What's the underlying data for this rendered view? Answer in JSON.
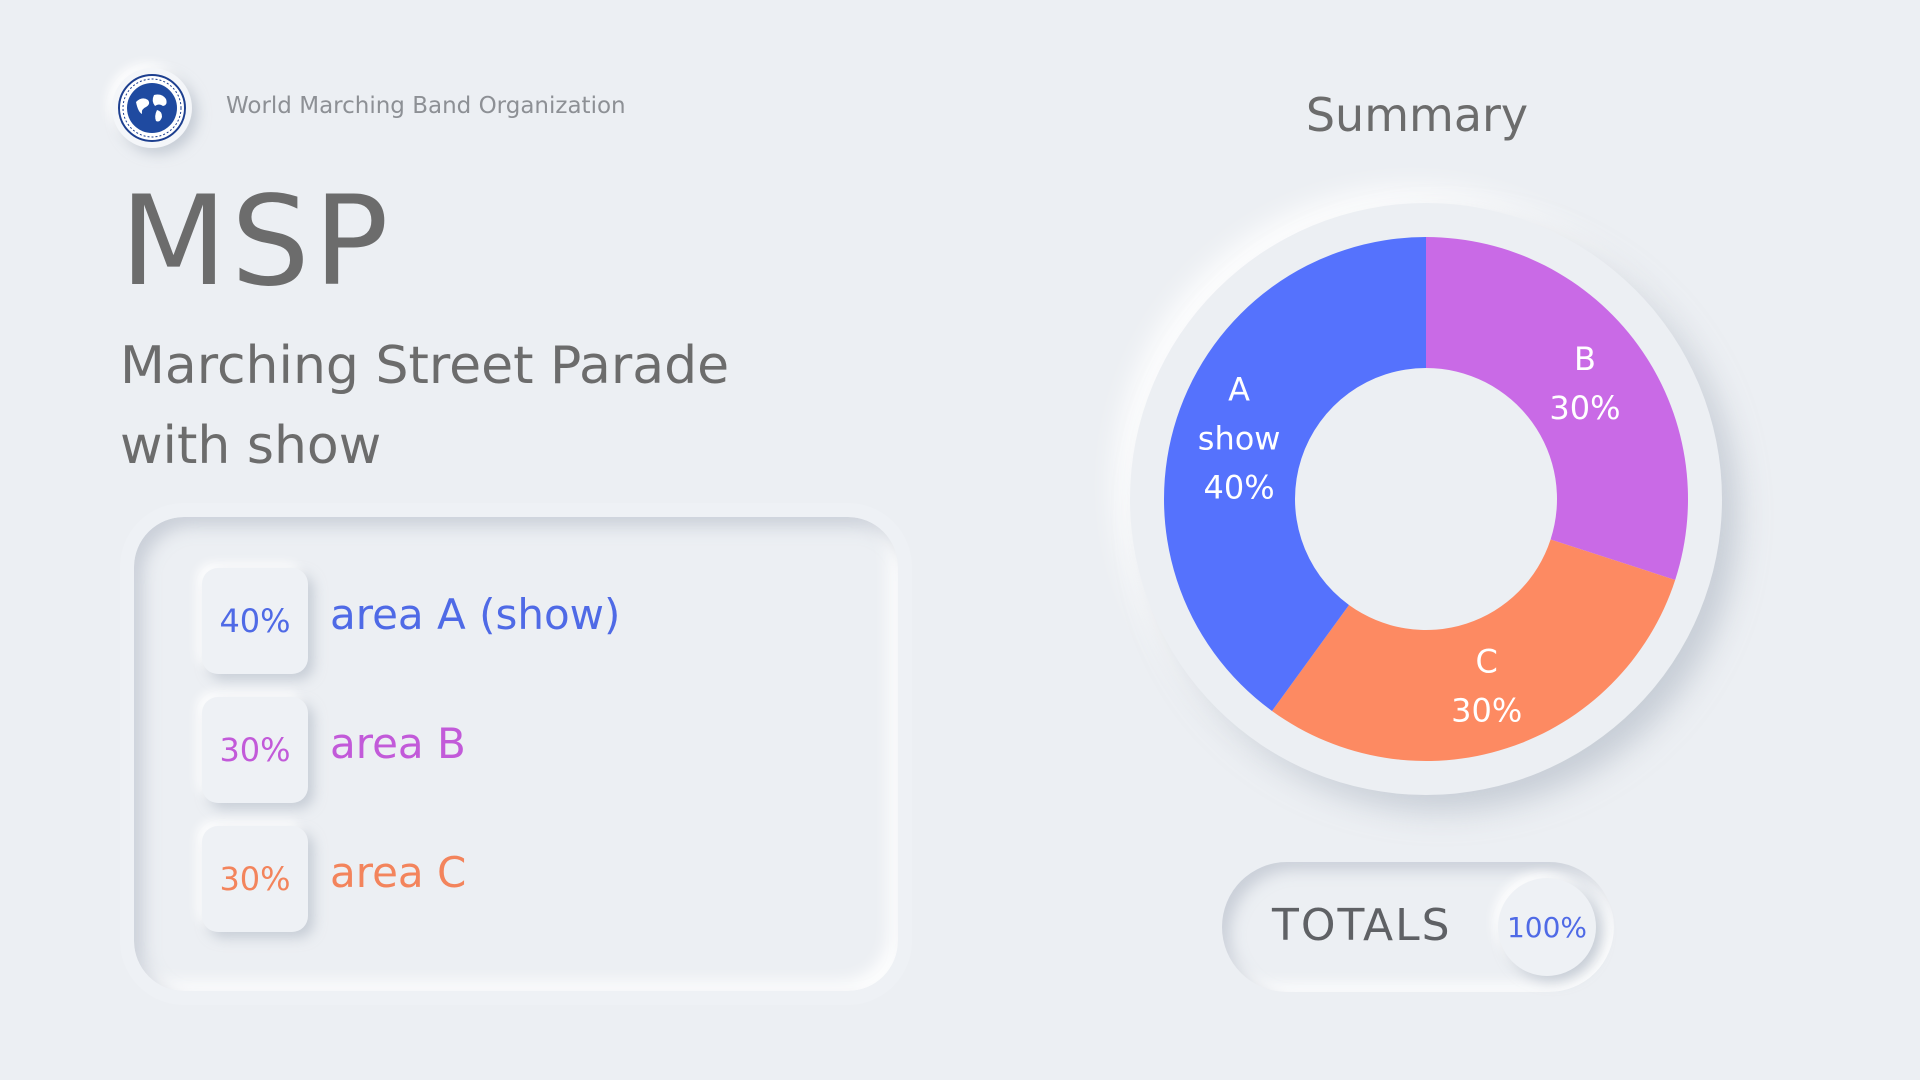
{
  "header": {
    "org_name": "World Marching Band Organization",
    "logo_icon": "globe-seal-icon"
  },
  "event": {
    "abbreviation": "MSP",
    "title_line1": "Marching Street Parade",
    "title_line2": "with show"
  },
  "legend": [
    {
      "pct": "40%",
      "label": "area A (show)",
      "color": "#4f6ae6"
    },
    {
      "pct": "30%",
      "label": "area B",
      "color": "#c25ad9"
    },
    {
      "pct": "30%",
      "label": "area C",
      "color": "#f3845c"
    }
  ],
  "summary": {
    "title": "Summary",
    "totals_label": "TOTALS",
    "totals_value": "100%",
    "totals_color": "#4f6ae6"
  },
  "chart_data": {
    "type": "pie",
    "title": "Summary",
    "categories": [
      "A",
      "B",
      "C"
    ],
    "slice_labels": [
      [
        "A",
        "show",
        "40%"
      ],
      [
        "B",
        "30%"
      ],
      [
        "C",
        "30%"
      ]
    ],
    "values": [
      40,
      30,
      30
    ],
    "colors": [
      "#5572fd",
      "#c96ae6",
      "#fd8a62"
    ],
    "donut": true
  }
}
